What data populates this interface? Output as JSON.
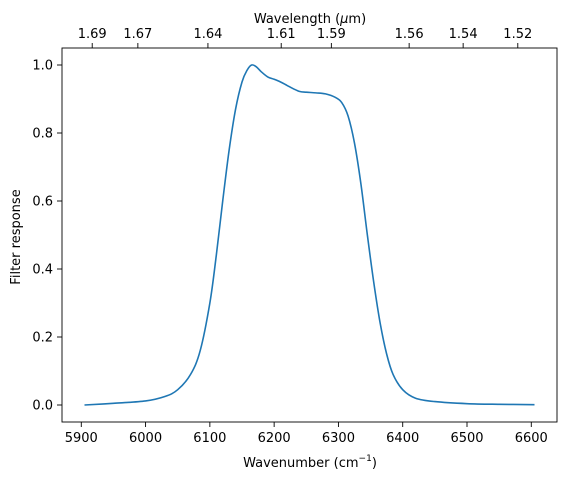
{
  "chart_data": {
    "type": "line",
    "xlabel": "Wavenumber (cm",
    "xlabel_sup": "−1",
    "xlabel_end": ")",
    "ylabel": "Filter response",
    "top_xlabel": "Wavelength (",
    "top_xlabel_mu": "μ",
    "top_xlabel_end": "m)",
    "xlim": [
      5870,
      6640
    ],
    "ylim": [
      -0.05,
      1.05
    ],
    "grid": false,
    "x_ticks": [
      5900,
      6000,
      6100,
      6200,
      6300,
      6400,
      6500,
      6600
    ],
    "x_tick_labels": [
      "5900",
      "6000",
      "6100",
      "6200",
      "6300",
      "6400",
      "6500",
      "6600"
    ],
    "y_ticks": [
      0.0,
      0.2,
      0.4,
      0.6,
      0.8,
      1.0
    ],
    "y_tick_labels": [
      "0.0",
      "0.2",
      "0.4",
      "0.6",
      "0.8",
      "1.0"
    ],
    "top_ticks": [
      {
        "x": 5917,
        "label": "1.69"
      },
      {
        "x": 5988,
        "label": "1.67"
      },
      {
        "x": 6097,
        "label": "1.64"
      },
      {
        "x": 6211,
        "label": "1.61"
      },
      {
        "x": 6289,
        "label": "1.59"
      },
      {
        "x": 6410,
        "label": "1.56"
      },
      {
        "x": 6494,
        "label": "1.54"
      },
      {
        "x": 6579,
        "label": "1.52"
      }
    ],
    "series": [
      {
        "color": "#1f77b4",
        "x": [
          5905,
          5950,
          6000,
          6030,
          6050,
          6070,
          6085,
          6100,
          6110,
          6120,
          6130,
          6140,
          6150,
          6158,
          6165,
          6172,
          6180,
          6190,
          6200,
          6210,
          6220,
          6230,
          6240,
          6250,
          6265,
          6280,
          6295,
          6305,
          6315,
          6325,
          6335,
          6345,
          6355,
          6365,
          6375,
          6385,
          6400,
          6420,
          6450,
          6500,
          6550,
          6605
        ],
        "y": [
          0.0,
          0.005,
          0.012,
          0.025,
          0.045,
          0.09,
          0.16,
          0.3,
          0.44,
          0.6,
          0.75,
          0.87,
          0.95,
          0.985,
          1.0,
          0.995,
          0.98,
          0.965,
          0.958,
          0.95,
          0.94,
          0.93,
          0.922,
          0.92,
          0.918,
          0.915,
          0.905,
          0.89,
          0.85,
          0.77,
          0.65,
          0.5,
          0.36,
          0.24,
          0.15,
          0.09,
          0.045,
          0.02,
          0.01,
          0.004,
          0.002,
          0.001
        ]
      }
    ]
  }
}
